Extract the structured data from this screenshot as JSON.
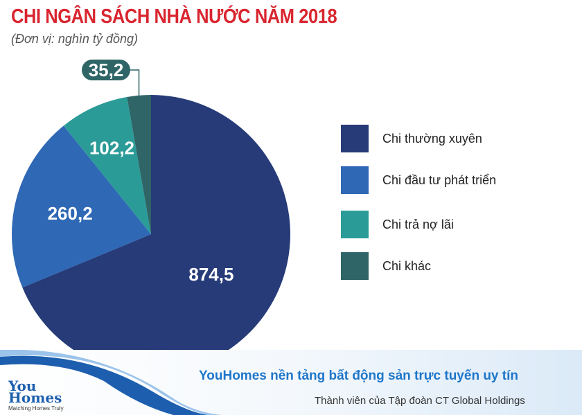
{
  "chart_data": {
    "type": "pie",
    "title": "CHI NGÂN SÁCH NHÀ NƯỚC NĂM 2018",
    "subtitle": "(Đơn vị: nghìn tỷ đồng)",
    "start": "top",
    "direction": "clockwise",
    "legend_position": "right",
    "slices": [
      {
        "label": "Chi thường xuyên",
        "value": 874.5,
        "value_label": "874,5",
        "color": "#263b78"
      },
      {
        "label": "Chi đầu tư phát triển",
        "value": 260.2,
        "value_label": "260,2",
        "color": "#2f68b5"
      },
      {
        "label": "Chi trả nợ lãi",
        "value": 102.2,
        "value_label": "102,2",
        "color": "#2b9b98"
      },
      {
        "label": "Chi khác",
        "value": 35.2,
        "value_label": "35,2",
        "color": "#2f6566"
      }
    ]
  },
  "footer": {
    "slogan": "YouHomes nền tảng bất động sản trực tuyến uy tín",
    "member": "Thành viên của Tập đoàn CT Global Holdings",
    "logo_text": "YouHomes",
    "logo_tagline": "Matching Homes Truly"
  }
}
